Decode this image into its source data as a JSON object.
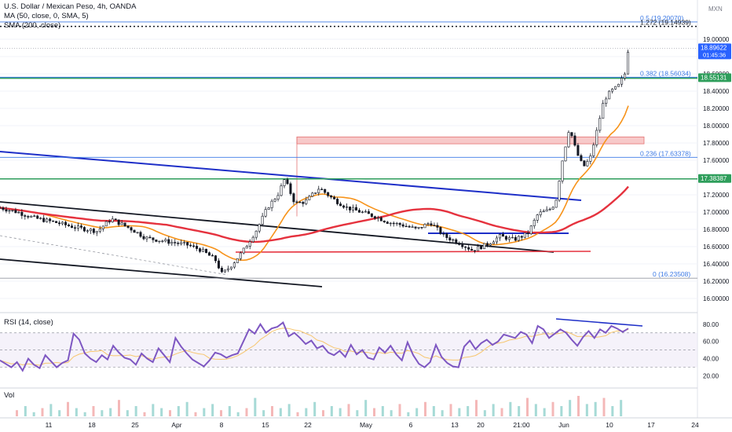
{
  "header": {
    "title": "U.S. Dollar / Mexican Peso, 4h, OANDA",
    "ma_label": "MA (50, close, 0, SMA, 5)",
    "sma_label": "SMA (200, close)",
    "rsi_label": "RSI (14, close)",
    "vol_label": "Vol",
    "currency": "MXN"
  },
  "colors": {
    "candles": "#131722",
    "ma50": "#f7931a",
    "sma200": "#e5323e",
    "rsi": "#7e57c2",
    "rsi_ma": "#f7c66e",
    "trend_blue": "#1e2fc8",
    "fib": "#3d7ae5",
    "support_green": "#2e9e5b",
    "resistance_box": "#f7c9c9",
    "price_tag": "#2962ff"
  },
  "chart_data": [
    {
      "type": "candlestick",
      "title": "U.S. Dollar / Mexican Peso, 4h, OANDA",
      "x_ticks": [
        "11",
        "18",
        "25",
        "Apr",
        "8",
        "15",
        "22",
        "May",
        "6",
        "13",
        "20",
        "21:00",
        "Jun",
        "10",
        "17",
        "24"
      ],
      "y_ticks": [
        "16.00000",
        "16.20000",
        "16.40000",
        "16.60000",
        "16.80000",
        "17.00000",
        "17.20000",
        "17.40000",
        "17.60000",
        "17.80000",
        "18.00000",
        "18.20000",
        "18.40000",
        "18.60000",
        "18.80000",
        "19.00000"
      ],
      "ylim": [
        15.91,
        19.42
      ],
      "close_path": [
        {
          "t": 0,
          "p": 17.05
        },
        {
          "t": 5,
          "p": 17.0
        },
        {
          "t": 10,
          "p": 16.93
        },
        {
          "t": 16,
          "p": 16.88
        },
        {
          "t": 22,
          "p": 16.82
        },
        {
          "t": 28,
          "p": 16.78
        },
        {
          "t": 32,
          "p": 16.92
        },
        {
          "t": 38,
          "p": 16.8
        },
        {
          "t": 42,
          "p": 16.7
        },
        {
          "t": 48,
          "p": 16.66
        },
        {
          "t": 54,
          "p": 16.62
        },
        {
          "t": 58,
          "p": 16.56
        },
        {
          "t": 62,
          "p": 16.45
        },
        {
          "t": 64,
          "p": 16.28
        },
        {
          "t": 67,
          "p": 16.4
        },
        {
          "t": 70,
          "p": 16.55
        },
        {
          "t": 74,
          "p": 16.8
        },
        {
          "t": 77,
          "p": 17.05
        },
        {
          "t": 80,
          "p": 17.2
        },
        {
          "t": 82,
          "p": 17.38
        },
        {
          "t": 85,
          "p": 17.1
        },
        {
          "t": 88,
          "p": 17.12
        },
        {
          "t": 92,
          "p": 17.28
        },
        {
          "t": 96,
          "p": 17.15
        },
        {
          "t": 100,
          "p": 17.05
        },
        {
          "t": 104,
          "p": 17.0
        },
        {
          "t": 108,
          "p": 16.95
        },
        {
          "t": 112,
          "p": 16.88
        },
        {
          "t": 116,
          "p": 16.85
        },
        {
          "t": 120,
          "p": 16.8
        },
        {
          "t": 124,
          "p": 16.88
        },
        {
          "t": 128,
          "p": 16.72
        },
        {
          "t": 132,
          "p": 16.65
        },
        {
          "t": 136,
          "p": 16.56
        },
        {
          "t": 140,
          "p": 16.62
        },
        {
          "t": 144,
          "p": 16.72
        },
        {
          "t": 148,
          "p": 16.68
        },
        {
          "t": 152,
          "p": 16.75
        },
        {
          "t": 155,
          "p": 16.98
        },
        {
          "t": 158,
          "p": 17.02
        },
        {
          "t": 160,
          "p": 17.1
        },
        {
          "t": 162,
          "p": 17.6
        },
        {
          "t": 164,
          "p": 17.98
        },
        {
          "t": 166,
          "p": 17.7
        },
        {
          "t": 168,
          "p": 17.52
        },
        {
          "t": 170,
          "p": 17.62
        },
        {
          "t": 172,
          "p": 17.95
        },
        {
          "t": 174,
          "p": 18.3
        },
        {
          "t": 176,
          "p": 18.4
        },
        {
          "t": 178,
          "p": 18.45
        },
        {
          "t": 180,
          "p": 18.6
        },
        {
          "t": 181,
          "p": 18.9
        }
      ],
      "levels": [
        {
          "label": "0.5 (19.20070)",
          "price": 19.2007
        },
        {
          "label": "1.272 (19.14939)",
          "price": 19.14939
        },
        {
          "label": "0.382 (18.56034)",
          "price": 18.56034
        },
        {
          "label": "0.236 (17.63378)",
          "price": 17.63378
        },
        {
          "label": "0 (16.23508)",
          "price": 16.23508
        }
      ],
      "price_tags": [
        {
          "value": "18.89622",
          "sub": "01:45:36",
          "price": 18.89622
        },
        {
          "value": "18.55131",
          "price": 18.55131
        },
        {
          "value": "17.38387",
          "price": 17.38387
        }
      ],
      "resistance_zone": [
        17.79,
        17.87
      ]
    },
    {
      "type": "line",
      "title": "RSI (14, close)",
      "y_ticks": [
        "20.00",
        "40.00",
        "60.00",
        "80.00"
      ],
      "ylim": [
        15,
        88
      ],
      "band": [
        30,
        70
      ],
      "values": [
        38,
        34,
        30,
        36,
        26,
        40,
        33,
        29,
        44,
        37,
        30,
        35,
        38,
        69,
        62,
        46,
        40,
        36,
        44,
        39,
        55,
        47,
        41,
        39,
        33,
        46,
        40,
        36,
        52,
        44,
        36,
        64,
        54,
        46,
        39,
        35,
        31,
        38,
        47,
        45,
        41,
        44,
        46,
        60,
        74,
        69,
        80,
        70,
        75,
        77,
        82,
        66,
        70,
        64,
        57,
        61,
        52,
        55,
        47,
        44,
        49,
        42,
        56,
        45,
        50,
        41,
        39,
        53,
        47,
        55,
        45,
        38,
        59,
        44,
        34,
        30,
        36,
        56,
        42,
        35,
        31,
        30,
        54,
        61,
        51,
        58,
        62,
        56,
        60,
        68,
        66,
        64,
        71,
        68,
        58,
        78,
        74,
        64,
        69,
        74,
        70,
        62,
        55,
        65,
        72,
        64,
        74,
        70,
        78,
        75,
        71,
        75
      ]
    },
    {
      "type": "bar",
      "title": "Vol",
      "values": [
        0.3,
        0.5,
        0.2,
        0.4,
        0.6,
        0.3,
        0.7,
        0.4,
        0.2,
        0.5,
        0.3,
        0.4,
        0.8,
        0.3,
        0.5,
        0.2,
        0.6,
        0.4,
        0.3,
        0.5,
        0.7,
        0.2,
        0.4,
        0.6,
        0.3,
        0.5,
        0.2,
        0.4,
        0.9,
        0.3,
        0.5,
        0.4,
        0.6,
        0.2,
        0.4,
        0.7,
        0.3,
        0.5,
        0.4,
        0.6,
        0.3,
        0.8,
        0.4,
        0.5,
        0.3,
        0.6,
        0.2,
        0.4,
        0.7,
        0.5,
        0.3,
        0.6,
        0.4,
        0.5,
        0.8,
        0.3,
        0.6,
        0.4,
        0.7,
        0.5,
        0.9,
        0.6,
        0.4,
        0.7,
        0.5,
        0.8,
        1.0,
        0.6,
        0.7,
        0.9,
        0.5,
        0.8
      ]
    }
  ]
}
